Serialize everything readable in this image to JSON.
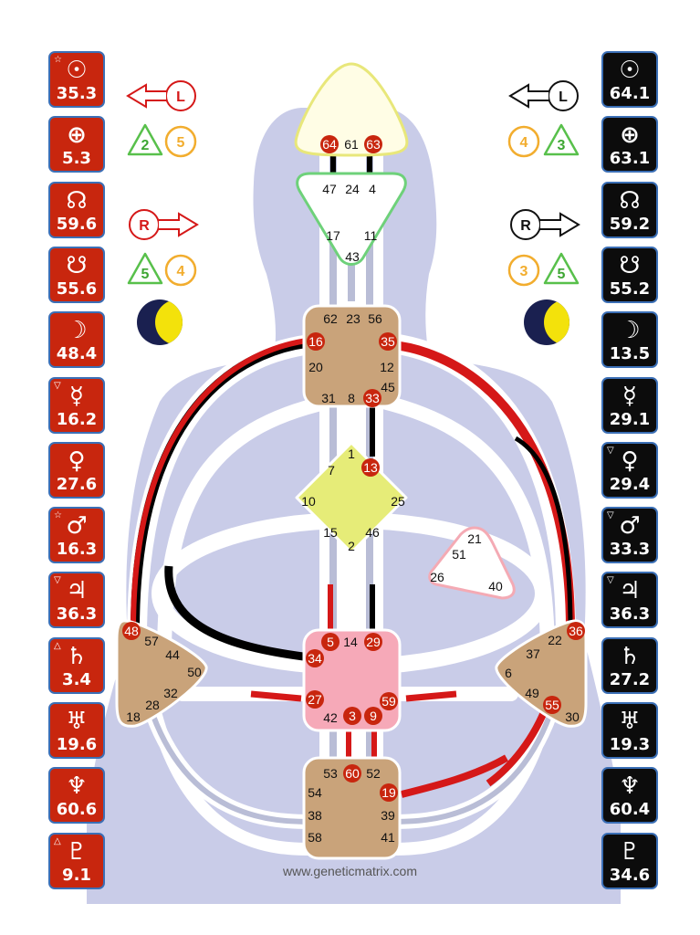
{
  "footer": "www.geneticmatrix.com",
  "colors": {
    "red": "#c8260e",
    "black": "#0c0c0c",
    "tile_border": "#3b6fb6",
    "body": "#c9cce8",
    "brown": "#c9a37a",
    "yellow": "#e6ec78",
    "pink": "#f6a9b8",
    "green": "#58c04b",
    "orange": "#f2ad2e"
  },
  "design_planets": [
    {
      "icon": "sun-icon",
      "glyph": "☉",
      "value": "35.3",
      "mark": "☆"
    },
    {
      "icon": "earth-icon",
      "glyph": "⊕",
      "value": "5.3",
      "mark": ""
    },
    {
      "icon": "north-node-icon",
      "glyph": "☊",
      "value": "59.6",
      "mark": ""
    },
    {
      "icon": "south-node-icon",
      "glyph": "☋",
      "value": "55.6",
      "mark": ""
    },
    {
      "icon": "moon-icon",
      "glyph": "☽",
      "value": "48.4",
      "mark": ""
    },
    {
      "icon": "mercury-icon",
      "glyph": "☿",
      "value": "16.2",
      "mark": "▽"
    },
    {
      "icon": "venus-icon",
      "glyph": "♀",
      "value": "27.6",
      "mark": ""
    },
    {
      "icon": "mars-icon",
      "glyph": "♂",
      "value": "16.3",
      "mark": "☆"
    },
    {
      "icon": "jupiter-icon",
      "glyph": "♃",
      "value": "36.3",
      "mark": "▽"
    },
    {
      "icon": "saturn-icon",
      "glyph": "♄",
      "value": "3.4",
      "mark": "△"
    },
    {
      "icon": "uranus-icon",
      "glyph": "♅",
      "value": "19.6",
      "mark": ""
    },
    {
      "icon": "neptune-icon",
      "glyph": "♆",
      "value": "60.6",
      "mark": ""
    },
    {
      "icon": "pluto-icon",
      "glyph": "♇",
      "value": "9.1",
      "mark": "△"
    }
  ],
  "personality_planets": [
    {
      "icon": "sun-icon",
      "glyph": "☉",
      "value": "64.1",
      "mark": ""
    },
    {
      "icon": "earth-icon",
      "glyph": "⊕",
      "value": "63.1",
      "mark": ""
    },
    {
      "icon": "north-node-icon",
      "glyph": "☊",
      "value": "59.2",
      "mark": ""
    },
    {
      "icon": "south-node-icon",
      "glyph": "☋",
      "value": "55.2",
      "mark": ""
    },
    {
      "icon": "moon-icon",
      "glyph": "☽",
      "value": "13.5",
      "mark": ""
    },
    {
      "icon": "mercury-icon",
      "glyph": "☿",
      "value": "29.1",
      "mark": ""
    },
    {
      "icon": "venus-icon",
      "glyph": "♀",
      "value": "29.4",
      "mark": "▽"
    },
    {
      "icon": "mars-icon",
      "glyph": "♂",
      "value": "33.3",
      "mark": "▽"
    },
    {
      "icon": "jupiter-icon",
      "glyph": "♃",
      "value": "36.3",
      "mark": "▽"
    },
    {
      "icon": "saturn-icon",
      "glyph": "♄",
      "value": "27.2",
      "mark": ""
    },
    {
      "icon": "uranus-icon",
      "glyph": "♅",
      "value": "19.3",
      "mark": ""
    },
    {
      "icon": "neptune-icon",
      "glyph": "♆",
      "value": "60.4",
      "mark": ""
    },
    {
      "icon": "pluto-icon",
      "glyph": "♇",
      "value": "34.6",
      "mark": ""
    }
  ],
  "variables": {
    "design_top": {
      "letter": "L",
      "tri": "2",
      "circ": "5"
    },
    "design_bottom": {
      "letter": "R",
      "tri": "5",
      "circ": "4"
    },
    "personality_top": {
      "letter": "L",
      "circ": "4",
      "tri": "3"
    },
    "personality_bottom": {
      "letter": "R",
      "circ": "3",
      "tri": "5"
    }
  },
  "centers": {
    "head": [
      "64",
      "61",
      "63"
    ],
    "ajna": [
      "47",
      "24",
      "4",
      "17",
      "11",
      "43"
    ],
    "throat": [
      "62",
      "23",
      "56",
      "16",
      "35",
      "20",
      "12",
      "31",
      "8",
      "33",
      "45"
    ],
    "g": [
      "1",
      "13",
      "7",
      "10",
      "25",
      "15",
      "46",
      "2"
    ],
    "heart": [
      "21",
      "51",
      "26",
      "40"
    ],
    "sacral": [
      "5",
      "14",
      "29",
      "34",
      "27",
      "59",
      "42",
      "3",
      "9"
    ],
    "spleen": [
      "48",
      "57",
      "44",
      "50",
      "32",
      "28",
      "18"
    ],
    "solar": [
      "36",
      "22",
      "37",
      "6",
      "49",
      "55",
      "30"
    ],
    "root": [
      "53",
      "60",
      "52",
      "54",
      "19",
      "38",
      "39",
      "58",
      "41"
    ]
  }
}
